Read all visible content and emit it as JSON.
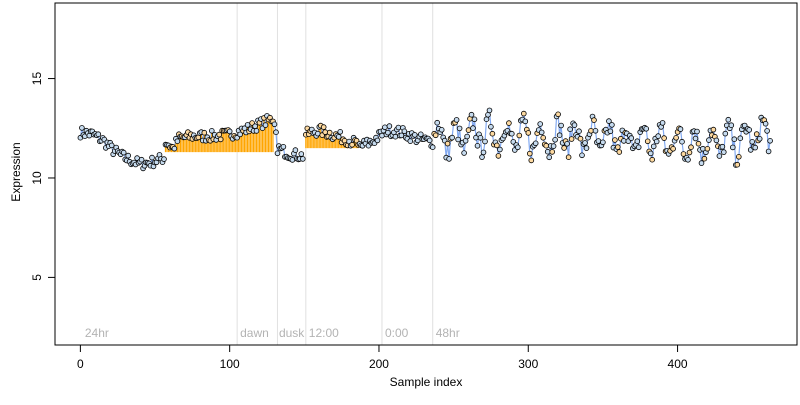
{
  "chart_data": {
    "type": "scatter",
    "title": "",
    "xlabel": "Sample index",
    "ylabel": "Expression",
    "xlim": [
      -17,
      480
    ],
    "ylim": [
      1.6,
      18.8
    ],
    "x_ticks": [
      0,
      100,
      200,
      300,
      400
    ],
    "y_ticks": [
      5,
      10,
      15
    ],
    "grid": false,
    "legend": "none",
    "vertical_lines": [
      105,
      132,
      151,
      202,
      236
    ],
    "annotations": [
      {
        "x": 3,
        "y": 2.0,
        "text": "24hr"
      },
      {
        "x": 107,
        "y": 2.0,
        "text": "dawn"
      },
      {
        "x": 133,
        "y": 2.0,
        "text": "dusk"
      },
      {
        "x": 153,
        "y": 2.0,
        "text": "12:00"
      },
      {
        "x": 204,
        "y": 2.0,
        "text": "0:00"
      },
      {
        "x": 238,
        "y": 2.0,
        "text": "48hr"
      }
    ],
    "colors": {
      "point_edge": "#000000",
      "point_fill_blue": "#c6dbef",
      "point_fill_orange": "#fdd9a0",
      "line_blue": "#6495ed",
      "line_orange": "#ffa500",
      "vline": "#e0e0e0",
      "annotation": "#b3b3b3"
    },
    "segments": [
      {
        "name": "seg1",
        "x_range": [
          0,
          56
        ],
        "anchors": [
          [
            0,
            12.3
          ],
          [
            8,
            12.2
          ],
          [
            15,
            11.9
          ],
          [
            22,
            11.4
          ],
          [
            30,
            11.0
          ],
          [
            40,
            10.7
          ],
          [
            48,
            10.8
          ],
          [
            56,
            11.0
          ]
        ],
        "orange_fill": false
      },
      {
        "name": "seg2",
        "x_range": [
          57,
          129
        ],
        "anchors": [
          [
            57,
            11.8
          ],
          [
            62,
            11.5
          ],
          [
            66,
            12.0
          ],
          [
            75,
            12.1
          ],
          [
            90,
            12.1
          ],
          [
            100,
            12.2
          ],
          [
            110,
            12.4
          ],
          [
            120,
            12.7
          ],
          [
            129,
            13.0
          ]
        ],
        "orange_fill": true
      },
      {
        "name": "seg3",
        "x_range": [
          130,
          149
        ],
        "anchors": [
          [
            130,
            12.6
          ],
          [
            132,
            11.5
          ],
          [
            140,
            11.2
          ],
          [
            149,
            11.1
          ]
        ],
        "orange_fill": false
      },
      {
        "name": "seg4",
        "x_range": [
          151,
          186
        ],
        "anchors": [
          [
            151,
            12.2
          ],
          [
            160,
            12.4
          ],
          [
            168,
            12.2
          ],
          [
            176,
            12.0
          ],
          [
            186,
            11.7
          ]
        ],
        "orange_fill": true
      },
      {
        "name": "seg5",
        "x_range": [
          187,
          236
        ],
        "anchors": [
          [
            187,
            11.6
          ],
          [
            195,
            11.8
          ],
          [
            205,
            12.4
          ],
          [
            215,
            12.3
          ],
          [
            225,
            12.0
          ],
          [
            236,
            11.8
          ]
        ],
        "orange_fill": false
      },
      {
        "name": "seg6",
        "x_range": [
          237,
          462
        ],
        "anchors": [
          [
            237,
            12.1
          ],
          [
            250,
            11.9
          ],
          [
            265,
            12.2
          ],
          [
            280,
            12.2
          ],
          [
            300,
            12.0
          ],
          [
            320,
            12.1
          ],
          [
            340,
            12.0
          ],
          [
            360,
            11.9
          ],
          [
            380,
            11.9
          ],
          [
            400,
            11.8
          ],
          [
            420,
            11.8
          ],
          [
            440,
            11.8
          ],
          [
            462,
            12.3
          ]
        ],
        "orange_fill": false,
        "oscillating": true
      }
    ],
    "point_count": 462
  }
}
